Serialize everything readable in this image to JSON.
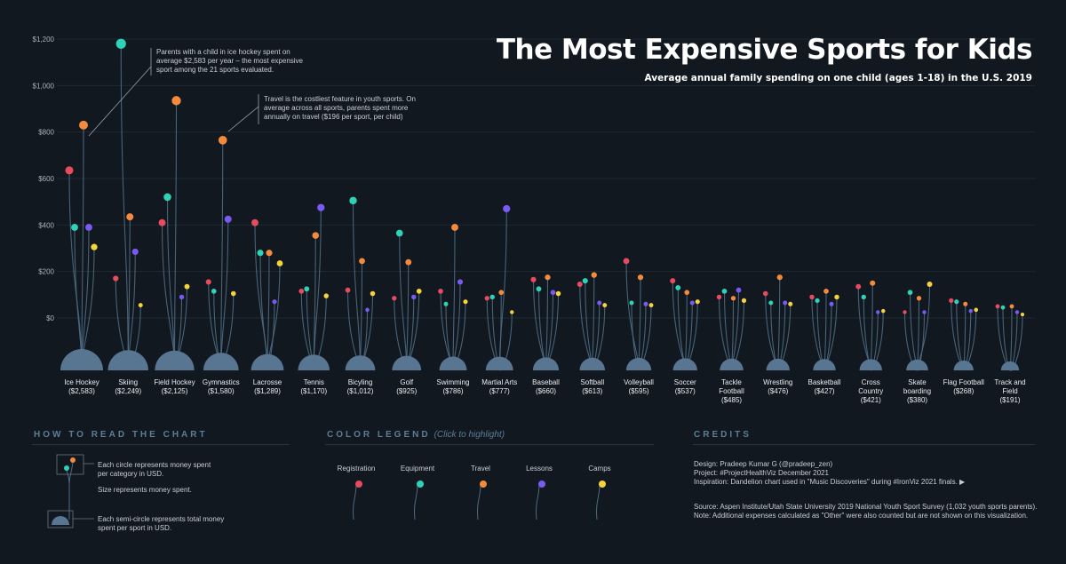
{
  "title": "The Most Expensive Sports for Kids",
  "subtitle": "Average annual family spending on one child (ages 1-18) in the U.S. 2019",
  "colors": {
    "background": "#121820",
    "stem": "#4d6b82",
    "registration": "#e84a5f",
    "equipment": "#2ed3b7",
    "travel": "#f58a3c",
    "lessons": "#7a5af5",
    "camps": "#f5d33c"
  },
  "annotations": {
    "ice_hockey": "Parents with a child in ice hockey spent on average $2,583 per year – the most expensive sport among the 21 sports evaluated.",
    "travel": "Travel is the costliest feature in youth sports. On average across all sports, parents spent more annually on travel ($196 per sport, per child)"
  },
  "how_to_read": {
    "heading": "HOW TO READ THE CHART",
    "circle_text": "Each circle represents money spent per category in USD.",
    "size_text": "Size represents money spent.",
    "semicircle_text": "Each semi-circle represents total money spent per sport in USD."
  },
  "color_legend": {
    "heading": "COLOR LEGEND",
    "hint": "(Click to highlight)",
    "items": [
      "Registration",
      "Equipment",
      "Travel",
      "Lessons",
      "Camps"
    ]
  },
  "credits": {
    "heading": "CREDITS",
    "line1": "Design: Pradeep Kumar G (@pradeep_zen)",
    "line2": "Project: #ProjectHealthViz December 2021",
    "line3": "Inspiration: Dandelion chart used in \"Music Discoveries\" during #IronViz 2021 finals. ▶",
    "line4": "Source: Aspen Institute/Utah State University 2019 National Youth Sport Survey (1,032 youth sports parents).",
    "line5": "Note: Additional expenses calculated as \"Other\" were also counted but are not shown on this visualization."
  },
  "chart_data": {
    "type": "dandelion",
    "yticks": [
      "$1,200",
      "$1,000",
      "$800",
      "$600",
      "$400",
      "$200",
      "$0"
    ],
    "ytick_values": [
      1200,
      1000,
      800,
      600,
      400,
      200,
      0
    ],
    "ylim": [
      0,
      1200
    ],
    "series_names": [
      "Registration",
      "Equipment",
      "Travel",
      "Lessons",
      "Camps"
    ],
    "sports": [
      {
        "name": "Ice Hockey",
        "total": "($2,583)",
        "total_value": 2583,
        "values": [
          635,
          390,
          830,
          390,
          305
        ]
      },
      {
        "name": "Skiing",
        "total": "($2,249)",
        "total_value": 2249,
        "values": [
          170,
          1180,
          435,
          285,
          55
        ]
      },
      {
        "name": "Field Hockey",
        "total": "($2,125)",
        "total_value": 2125,
        "values": [
          410,
          520,
          935,
          90,
          135
        ]
      },
      {
        "name": "Gymnastics",
        "total": "($1,580)",
        "total_value": 1580,
        "values": [
          155,
          115,
          765,
          425,
          105
        ]
      },
      {
        "name": "Lacrosse",
        "total": "($1,289)",
        "total_value": 1289,
        "values": [
          410,
          280,
          280,
          70,
          235
        ]
      },
      {
        "name": "Tennis",
        "total": "($1,170)",
        "total_value": 1170,
        "values": [
          115,
          125,
          355,
          475,
          95
        ]
      },
      {
        "name": "Bicyling",
        "total": "($1,012)",
        "total_value": 1012,
        "values": [
          120,
          505,
          245,
          35,
          105
        ]
      },
      {
        "name": "Golf",
        "total": "($925)",
        "total_value": 925,
        "values": [
          85,
          365,
          240,
          90,
          115
        ]
      },
      {
        "name": "Swimming",
        "total": "($786)",
        "total_value": 786,
        "values": [
          115,
          60,
          390,
          155,
          70
        ]
      },
      {
        "name": "Martial Arts",
        "total": "($777)",
        "total_value": 777,
        "values": [
          85,
          90,
          110,
          470,
          25
        ]
      },
      {
        "name": "Baseball",
        "total": "($660)",
        "total_value": 660,
        "values": [
          165,
          125,
          175,
          110,
          105
        ]
      },
      {
        "name": "Softball",
        "total": "($613)",
        "total_value": 613,
        "values": [
          145,
          160,
          185,
          65,
          55
        ]
      },
      {
        "name": "Volleyball",
        "total": "($595)",
        "total_value": 595,
        "values": [
          245,
          65,
          175,
          60,
          55
        ]
      },
      {
        "name": "Soccer",
        "total": "($537)",
        "total_value": 537,
        "values": [
          160,
          130,
          110,
          65,
          70
        ]
      },
      {
        "name": "Tackle Football",
        "total": "($485)",
        "total_value": 485,
        "values": [
          90,
          115,
          85,
          120,
          75
        ]
      },
      {
        "name": "Wrestling",
        "total": "($476)",
        "total_value": 476,
        "values": [
          105,
          65,
          175,
          65,
          60
        ]
      },
      {
        "name": "Basketball",
        "total": "($427)",
        "total_value": 427,
        "values": [
          90,
          75,
          115,
          60,
          90
        ]
      },
      {
        "name": "Cross Country",
        "total": "($421)",
        "total_value": 421,
        "values": [
          135,
          90,
          150,
          25,
          30
        ]
      },
      {
        "name": "Skate boarding",
        "total": "($380)",
        "total_value": 380,
        "values": [
          25,
          110,
          85,
          25,
          145
        ]
      },
      {
        "name": "Flag Football",
        "total": "($268)",
        "total_value": 268,
        "values": [
          75,
          70,
          60,
          30,
          35
        ]
      },
      {
        "name": "Track and Field",
        "total": "($191)",
        "total_value": 191,
        "values": [
          50,
          45,
          50,
          25,
          15
        ]
      }
    ]
  }
}
